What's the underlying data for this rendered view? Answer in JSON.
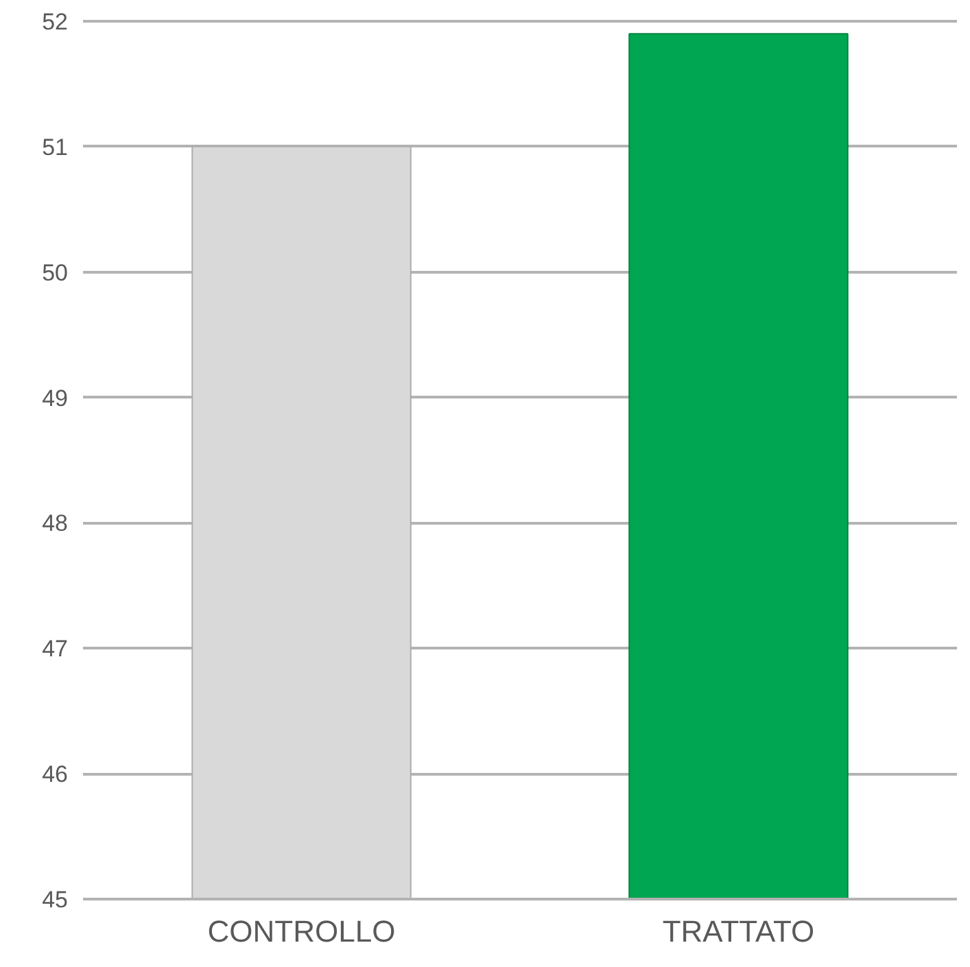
{
  "chart_data": {
    "type": "bar",
    "categories": [
      "CONTROLLO",
      "TRATTATO"
    ],
    "values": [
      51.0,
      51.9
    ],
    "colors": [
      "#d9d9d9",
      "#00a651"
    ],
    "ylim": [
      45,
      52
    ],
    "yticks": [
      45,
      46,
      47,
      48,
      49,
      50,
      51,
      52
    ],
    "grid": "y"
  }
}
